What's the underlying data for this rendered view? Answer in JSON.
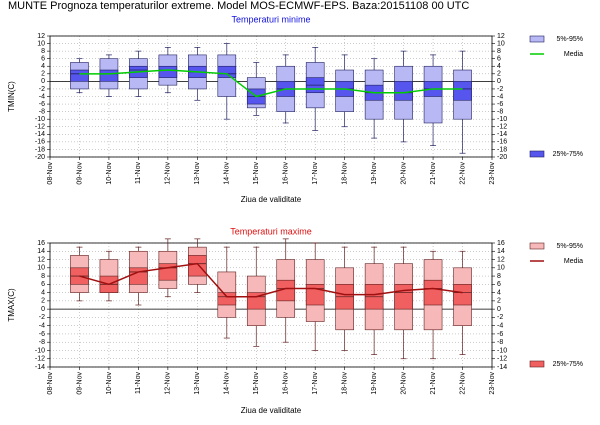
{
  "title": "MUNTE  Prognoza temperaturilor extreme.  Model MOS-ECMWF-EPS. Baza:20151108 00 UTC",
  "chart_data": [
    {
      "type": "box",
      "subtitle": "Temperaturi minime",
      "subtitle_color": "#1010e0",
      "xlabel": "Ziua de validitate",
      "ylabel": "TMIN(C)",
      "categories": [
        "08-Nov",
        "09-Nov",
        "10-Nov",
        "11-Nov",
        "12-Nov",
        "13-Nov",
        "14-Nov",
        "15-Nov",
        "16-Nov",
        "17-Nov",
        "18-Nov",
        "19-Nov",
        "20-Nov",
        "21-Nov",
        "22-Nov",
        "23-Nov"
      ],
      "ylim": [
        -20,
        12
      ],
      "yticks": [
        -20,
        -18,
        -16,
        -14,
        -12,
        -10,
        -8,
        -6,
        -4,
        -2,
        0,
        2,
        4,
        6,
        8,
        10,
        12
      ],
      "grid": true,
      "legend": [
        {
          "label": "5%-95%",
          "color": "#b8b8f4"
        },
        {
          "label": "Media",
          "color": "#00cc00"
        },
        {
          "label": "25%-75%",
          "color": "#5656ee"
        }
      ],
      "edge_color": "#202060",
      "low": [
        null,
        -3,
        -4,
        -4,
        -3,
        -5,
        -10,
        -9,
        -11,
        -13,
        -12,
        -15,
        -16,
        -17,
        -19,
        null
      ],
      "p5": [
        null,
        -2,
        -2,
        -2,
        -1,
        -2,
        -4,
        -7,
        -8,
        -7,
        -8,
        -10,
        -10,
        -11,
        -10,
        null
      ],
      "p25": [
        null,
        0,
        0,
        1,
        1,
        1,
        1,
        -6,
        -4,
        -3,
        -4,
        -5,
        -5,
        -4,
        -5,
        null
      ],
      "median": [
        null,
        2,
        2,
        3,
        3,
        2.5,
        2,
        -4,
        -2,
        -1,
        -2,
        -3,
        -3,
        -2,
        -2,
        null
      ],
      "p75": [
        null,
        3,
        3,
        4,
        4,
        4,
        4,
        -2,
        0,
        1,
        0,
        -1,
        0,
        0,
        0,
        null
      ],
      "p95": [
        null,
        5,
        6,
        6,
        7,
        7,
        7,
        1,
        4,
        5,
        3,
        3,
        4,
        4,
        3,
        null
      ],
      "high": [
        null,
        6,
        7,
        8,
        9,
        9,
        10,
        5,
        7,
        9,
        7,
        6,
        8,
        7,
        8,
        null
      ],
      "mean": [
        null,
        2,
        2,
        2.5,
        3,
        2.5,
        2,
        -4,
        -2,
        -2,
        -2,
        -3,
        -3,
        -2,
        -2,
        null
      ]
    },
    {
      "type": "box",
      "subtitle": "Temperaturi maxime",
      "subtitle_color": "#e01010",
      "xlabel": "Ziua de validitate",
      "ylabel": "TMAX(C)",
      "categories": [
        "08-Nov",
        "09-Nov",
        "10-Nov",
        "11-Nov",
        "12-Nov",
        "13-Nov",
        "14-Nov",
        "15-Nov",
        "16-Nov",
        "17-Nov",
        "18-Nov",
        "19-Nov",
        "20-Nov",
        "21-Nov",
        "22-Nov",
        "23-Nov"
      ],
      "ylim": [
        -14,
        16
      ],
      "yticks": [
        -14,
        -12,
        -10,
        -8,
        -6,
        -4,
        -2,
        0,
        2,
        4,
        6,
        8,
        10,
        12,
        14,
        16
      ],
      "grid": true,
      "legend": [
        {
          "label": "5%-95%",
          "color": "#f6b8b8"
        },
        {
          "label": "Media",
          "color": "#a01010"
        },
        {
          "label": "25%-75%",
          "color": "#f06060"
        }
      ],
      "edge_color": "#602020",
      "low": [
        null,
        2,
        2,
        1,
        3,
        4,
        -7,
        -9,
        -8,
        -10,
        -10,
        -11,
        -12,
        -12,
        -11,
        null
      ],
      "p5": [
        null,
        4,
        4,
        4,
        5,
        6,
        -2,
        -4,
        -2,
        -3,
        -5,
        -5,
        -5,
        -5,
        -4,
        null
      ],
      "p25": [
        null,
        6,
        4,
        6,
        7,
        8,
        1,
        0,
        2,
        1,
        0,
        0,
        0,
        1,
        1,
        null
      ],
      "median": [
        null,
        8,
        6,
        9,
        10,
        11,
        3,
        3,
        5,
        5,
        3,
        3,
        4,
        5,
        4,
        null
      ],
      "p75": [
        null,
        10,
        8,
        10,
        11,
        13,
        4,
        4,
        7,
        6,
        6,
        6,
        6,
        7,
        6,
        null
      ],
      "p95": [
        null,
        13,
        12,
        14,
        14,
        15,
        9,
        8,
        12,
        12,
        10,
        11,
        11,
        12,
        10,
        null
      ],
      "high": [
        null,
        15,
        14,
        15,
        17,
        17,
        15,
        15,
        17,
        16,
        15,
        15,
        15,
        14,
        14,
        null
      ],
      "mean": [
        null,
        8,
        6,
        9,
        10,
        11,
        3,
        3,
        5,
        5,
        3.5,
        3.5,
        4.5,
        5,
        4,
        null
      ]
    }
  ]
}
